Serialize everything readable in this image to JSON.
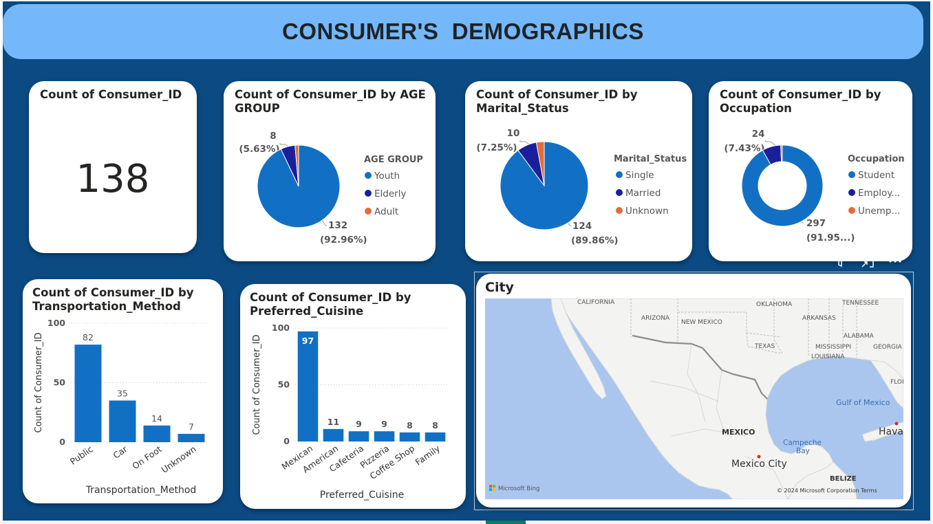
{
  "header": {
    "title": "CONSUMER'S  DEMOGRAPHICS"
  },
  "colors": {
    "background": "#0b4a82",
    "banner": "#74b7fa",
    "primary": "#1270c4",
    "secondary": "#1a1f9c",
    "tertiary": "#e66c37"
  },
  "kpi": {
    "title": "Count of Consumer_ID",
    "value": "138"
  },
  "age_chart": {
    "title_line1": "Count of Consumer_ID by AGE",
    "title_line2": "GROUP",
    "legend_title": "AGE GROUP",
    "label_small_value": "8",
    "label_small_pct": "(5.63%)",
    "label_big_value": "132",
    "label_big_pct": "(92.96%)"
  },
  "marital_chart": {
    "title_line1": "Count of Consumer_ID by",
    "title_line2": "Marital_Status",
    "legend_title": "Marital_Status",
    "label_small_value": "10",
    "label_small_pct": "(7.25%)",
    "label_big_value": "124",
    "label_big_pct": "(89.86%)"
  },
  "occupation_chart": {
    "title_line1": "Count of Consumer_ID by",
    "title_line2": "Occupation",
    "legend_title": "Occupation",
    "label_small_value": "24",
    "label_small_pct": "(7.43%)",
    "label_big_value": "297",
    "label_big_pct": "(91.95...)"
  },
  "transport_chart": {
    "title_line1": "Count of Consumer_ID by",
    "title_line2": "Transportation_Method",
    "y_ticks": [
      "100",
      "50",
      "0"
    ]
  },
  "cuisine_chart": {
    "title_line1": "Count of Consumer_ID by",
    "title_line2": "Preferred_Cuisine",
    "y_ticks": [
      "100",
      "50",
      "0"
    ]
  },
  "visual_toolbar": {
    "filter_icon": "filter-icon",
    "focus_icon": "focus-mode-icon",
    "more_icon": "more-options-icon"
  },
  "map": {
    "title": "City",
    "labels": {
      "california": "CALIFORNIA",
      "arizona": "ARIZONA",
      "new_mexico": "NEW MEXICO",
      "oklahoma": "OKLAHOMA",
      "tennessee": "TENNESSEE",
      "arkansas": "ARKANSAS",
      "alabama": "ALABAMA",
      "texas": "TEXAS",
      "mississippi": "MISSISSIPPI",
      "georgia": "GEORGIA",
      "louisiana": "LOUISIANA",
      "flor": "FLOR",
      "gulf": "Gulf of Mexico",
      "mexico": "MEXICO",
      "campeche_1": "Campeche",
      "campeche_2": "Bay",
      "hava": "Hava",
      "mexico_city": "Mexico City",
      "belize": "BELIZE"
    },
    "logo": "Microsoft Bing",
    "copyright": "© 2024 Microsoft Corporation  Terms"
  },
  "chart_data": [
    {
      "type": "pie",
      "title": "Count of Consumer_ID by AGE GROUP",
      "legend_title": "AGE GROUP",
      "legend_position": "right",
      "categories": [
        "Youth",
        "Elderly",
        "Adult"
      ],
      "values": [
        132,
        8,
        2
      ],
      "colors": [
        "#1270c4",
        "#1a1f9c",
        "#e66c37"
      ]
    },
    {
      "type": "pie",
      "title": "Count of Consumer_ID by Marital_Status",
      "legend_title": "Marital_Status",
      "legend_position": "right",
      "categories": [
        "Single",
        "Married",
        "Unknown"
      ],
      "values": [
        124,
        10,
        4
      ],
      "colors": [
        "#1270c4",
        "#1a1f9c",
        "#e66c37"
      ]
    },
    {
      "type": "pie",
      "title": "Count of Consumer_ID by Occupation",
      "legend_title": "Occupation",
      "legend_position": "right",
      "donut": true,
      "categories": [
        "Student",
        "Employ...",
        "Unemp..."
      ],
      "values": [
        297,
        24,
        2
      ],
      "colors": [
        "#1270c4",
        "#1a1f9c",
        "#e66c37"
      ]
    },
    {
      "type": "bar",
      "title": "Count of Consumer_ID by Transportation_Method",
      "xlabel": "Transportation_Method",
      "ylabel": "Count of Consumer_ID",
      "categories": [
        "Public",
        "Car",
        "On Foot",
        "Unknown"
      ],
      "values": [
        82,
        35,
        14,
        7
      ],
      "ylim": [
        0,
        100
      ],
      "grid": true,
      "color": "#1270c4"
    },
    {
      "type": "bar",
      "title": "Count of Consumer_ID by Preferred_Cuisine",
      "xlabel": "Preferred_Cuisine",
      "ylabel": "Count of Consumer_ID",
      "categories": [
        "Mexican",
        "American",
        "Cafeteria",
        "Pizzeria",
        "Coffee Shop",
        "Family"
      ],
      "values": [
        97,
        11,
        9,
        9,
        8,
        8
      ],
      "ylim": [
        0,
        100
      ],
      "grid": true,
      "color": "#1270c4"
    }
  ]
}
